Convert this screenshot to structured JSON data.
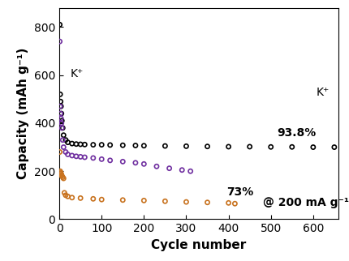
{
  "chart_data": {
    "type": "scatter",
    "x_label": "Cycle number",
    "y_label": "Capacity (mAh g⁻¹)",
    "annotations": [
      "93.8%",
      "73%",
      "@ 200 mA g⁻¹",
      "K⁺",
      "K⁺"
    ],
    "xlim": [
      0,
      660
    ],
    "xticks": [
      0,
      100,
      200,
      300,
      400,
      500,
      600
    ],
    "ylim": [
      0,
      880
    ],
    "yticks": [
      0,
      200,
      400,
      600,
      800
    ],
    "grid": false,
    "marker": "o",
    "series": [
      {
        "color": "#000000",
        "x": [
          1,
          2,
          3,
          4,
          5,
          6,
          8,
          10,
          15,
          20,
          30,
          40,
          50,
          60,
          80,
          100,
          120,
          150,
          180,
          200,
          250,
          300,
          350,
          400,
          450,
          500,
          550,
          600,
          650
        ],
        "values": [
          810,
          520,
          490,
          470,
          440,
          410,
          380,
          350,
          330,
          320,
          315,
          313,
          312,
          311,
          310,
          310,
          309,
          308,
          307,
          306,
          305,
          304,
          303,
          302,
          302,
          301,
          301,
          300,
          300
        ]
      },
      {
        "color": "#7030a0",
        "x": [
          1,
          2,
          3,
          4,
          5,
          6,
          8,
          10,
          15,
          20,
          30,
          40,
          50,
          60,
          80,
          100,
          120,
          150,
          180,
          200,
          230,
          260,
          290,
          310
        ],
        "values": [
          740,
          470,
          440,
          420,
          400,
          380,
          330,
          300,
          280,
          270,
          265,
          262,
          260,
          258,
          255,
          250,
          245,
          240,
          235,
          230,
          220,
          212,
          205,
          200
        ]
      },
      {
        "color": "#c8721e",
        "x": [
          1,
          2,
          3,
          4,
          5,
          6,
          8,
          10,
          12,
          15,
          20,
          30,
          50,
          80,
          100,
          150,
          200,
          250,
          300,
          350,
          400,
          415
        ],
        "values": [
          280,
          200,
          195,
          190,
          185,
          180,
          175,
          170,
          110,
          100,
          95,
          90,
          88,
          85,
          82,
          80,
          78,
          75,
          72,
          70,
          68,
          65
        ]
      }
    ]
  }
}
